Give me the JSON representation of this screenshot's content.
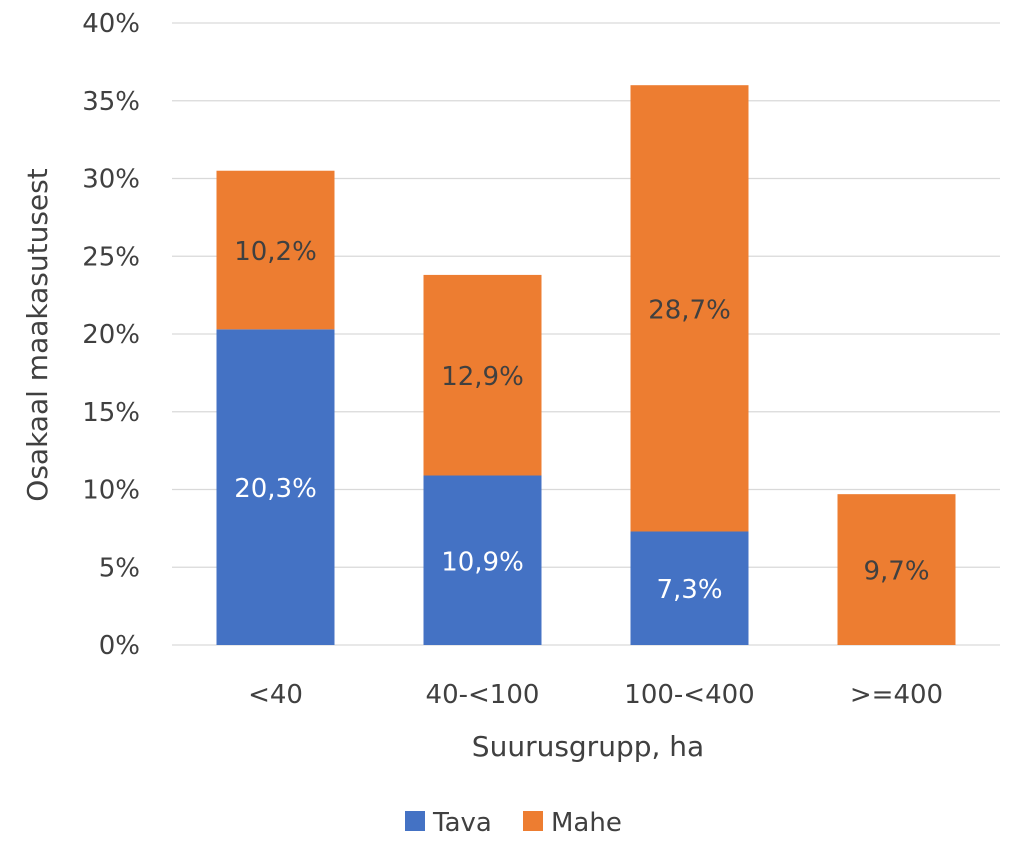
{
  "chart_data": {
    "type": "bar",
    "stacked": true,
    "categories": [
      "<40",
      "40-<100",
      "100-<400",
      ">=400"
    ],
    "series": [
      {
        "name": "Tava",
        "values": [
          20.3,
          10.9,
          7.3,
          0
        ],
        "labels": [
          "20,3%",
          "10,9%",
          "7,3%",
          ""
        ],
        "color": "#4472C4",
        "label_color": "#ffffff"
      },
      {
        "name": "Mahe",
        "values": [
          10.2,
          12.9,
          28.7,
          9.7
        ],
        "labels": [
          "10,2%",
          "12,9%",
          "28,7%",
          "9,7%"
        ],
        "color": "#ED7D31",
        "label_color": "#404040"
      }
    ],
    "xlabel": "Suurusgrupp, ha",
    "ylabel": "Osakaal maakasutusest",
    "ylim": [
      0,
      40
    ],
    "yticks": [
      0,
      5,
      10,
      15,
      20,
      25,
      30,
      35,
      40
    ],
    "ytick_labels": [
      "0%",
      "5%",
      "10%",
      "15%",
      "20%",
      "25%",
      "30%",
      "35%",
      "40%"
    ],
    "grid": true,
    "legend_position": "bottom"
  }
}
